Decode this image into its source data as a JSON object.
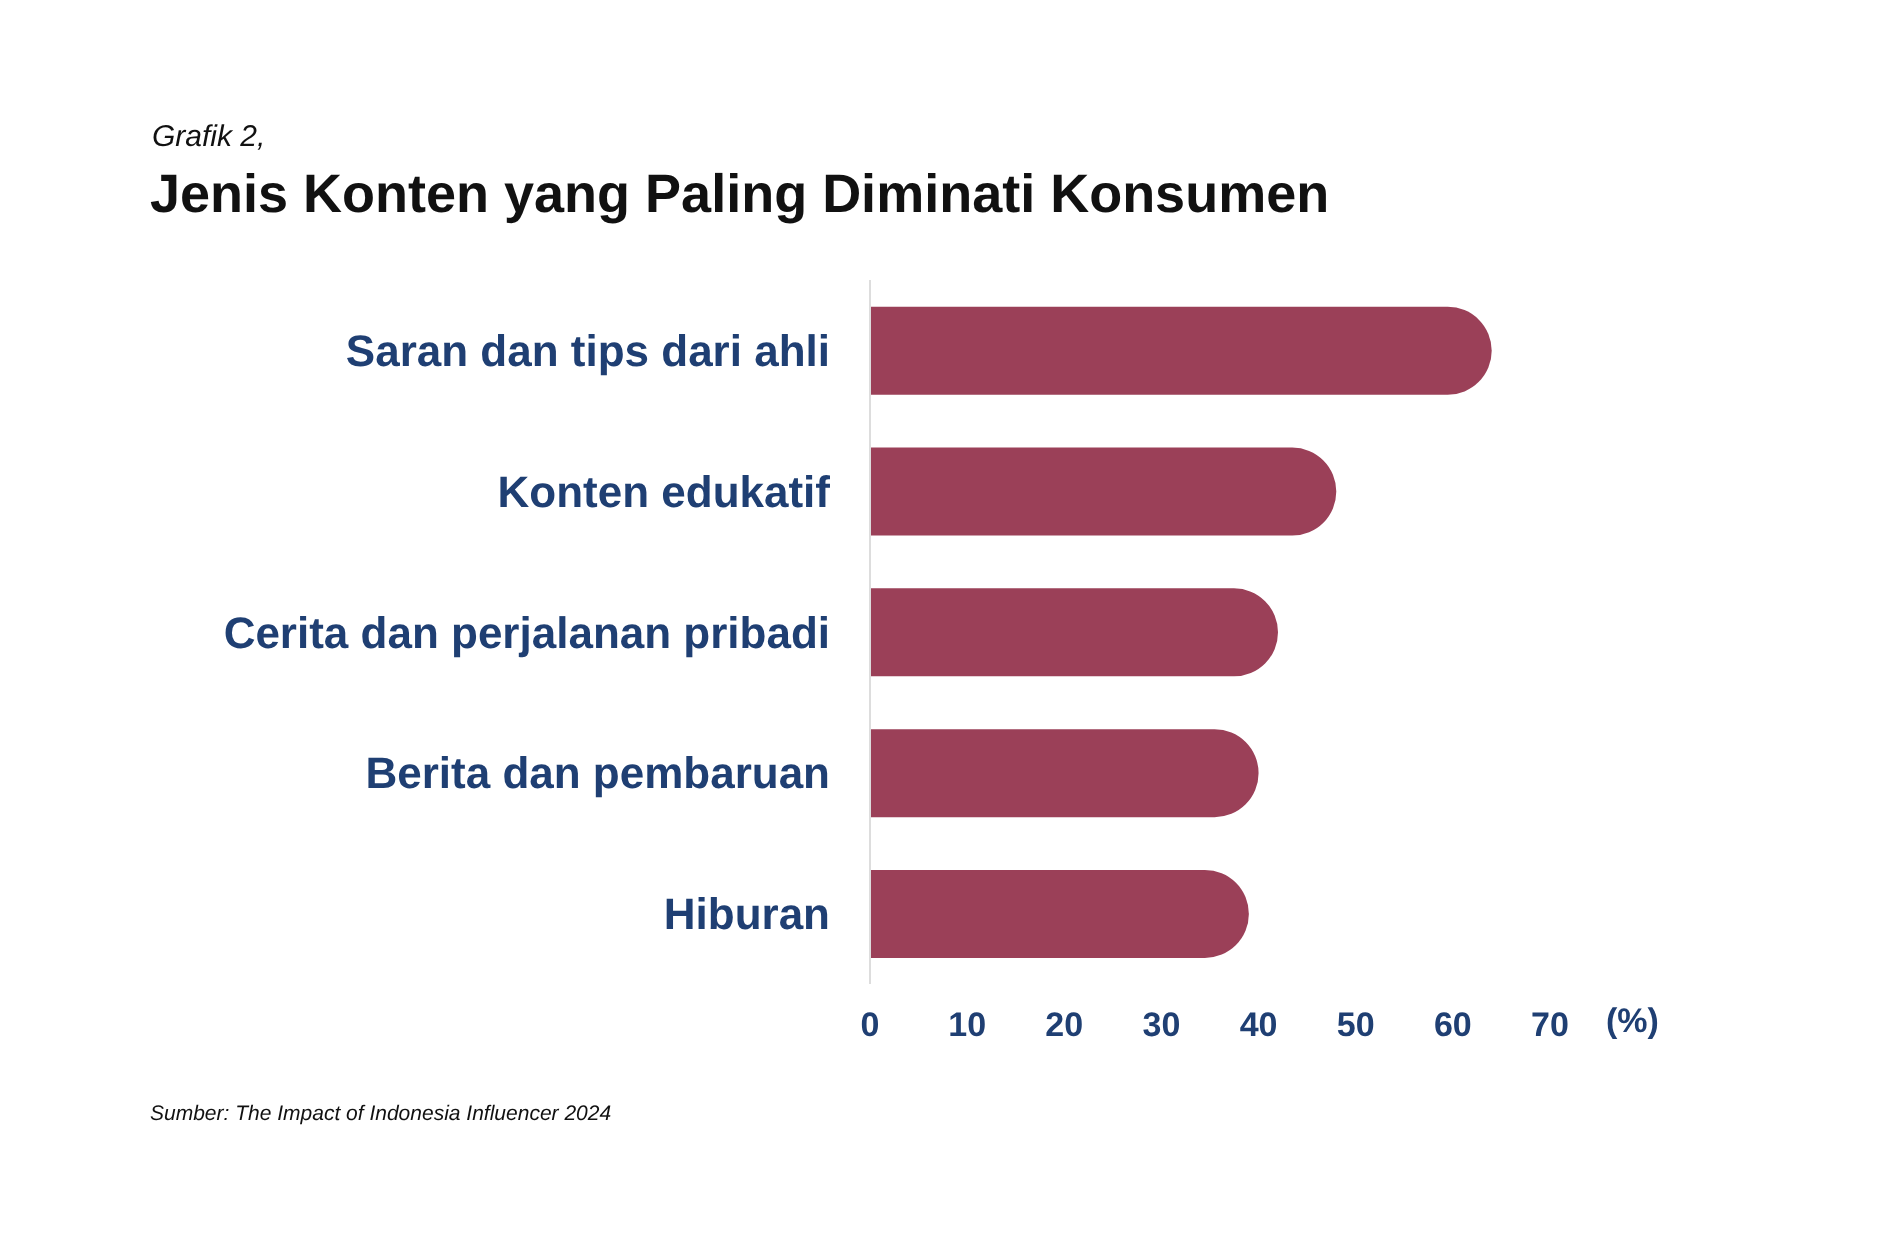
{
  "chart_data": {
    "type": "bar",
    "orientation": "horizontal",
    "subtitle": "Grafik 2,",
    "title": "Jenis Konten yang Paling Diminati Konsumen",
    "xlabel": "(%)",
    "categories": [
      "Saran dan tips dari ahli",
      "Konten edukatif",
      "Cerita dan perjalanan pribadi",
      "Berita dan pembaruan",
      "Hiburan"
    ],
    "values": [
      64,
      48,
      42,
      40,
      39
    ],
    "color": "#9b4058",
    "xlim": [
      0,
      70
    ],
    "xticks": [
      0,
      10,
      20,
      30,
      40,
      50,
      60,
      70
    ],
    "grid": false,
    "legend": false,
    "annotations": [
      "Sumber: The Impact of Indonesia Influencer 2024"
    ]
  }
}
